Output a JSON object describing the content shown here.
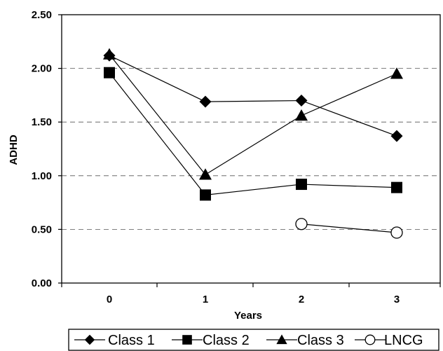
{
  "chart_data": {
    "type": "line",
    "title": "",
    "xlabel": "Years",
    "ylabel": "ADHD",
    "x": [
      0,
      1,
      2,
      3
    ],
    "x_tick_labels": [
      "0",
      "1",
      "2",
      "3"
    ],
    "ylim": [
      0,
      2.5
    ],
    "y_ticks": [
      0,
      0.5,
      1.0,
      1.5,
      2.0,
      2.5
    ],
    "y_tick_labels": [
      "0.00",
      "0.50",
      "1.00",
      "1.50",
      "2.00",
      "2.50"
    ],
    "grid": "horizontal dashed",
    "legend_position": "bottom",
    "series": [
      {
        "name": "Class 1",
        "marker": "diamond",
        "values": [
          2.12,
          1.69,
          1.7,
          1.37
        ]
      },
      {
        "name": "Class 2",
        "marker": "square",
        "values": [
          1.96,
          0.82,
          0.92,
          0.89
        ]
      },
      {
        "name": "Class 3",
        "marker": "triangle",
        "values": [
          2.13,
          1.01,
          1.56,
          1.95
        ]
      },
      {
        "name": "LNCG",
        "marker": "open-circle",
        "values": [
          null,
          null,
          0.55,
          0.47
        ]
      }
    ]
  }
}
